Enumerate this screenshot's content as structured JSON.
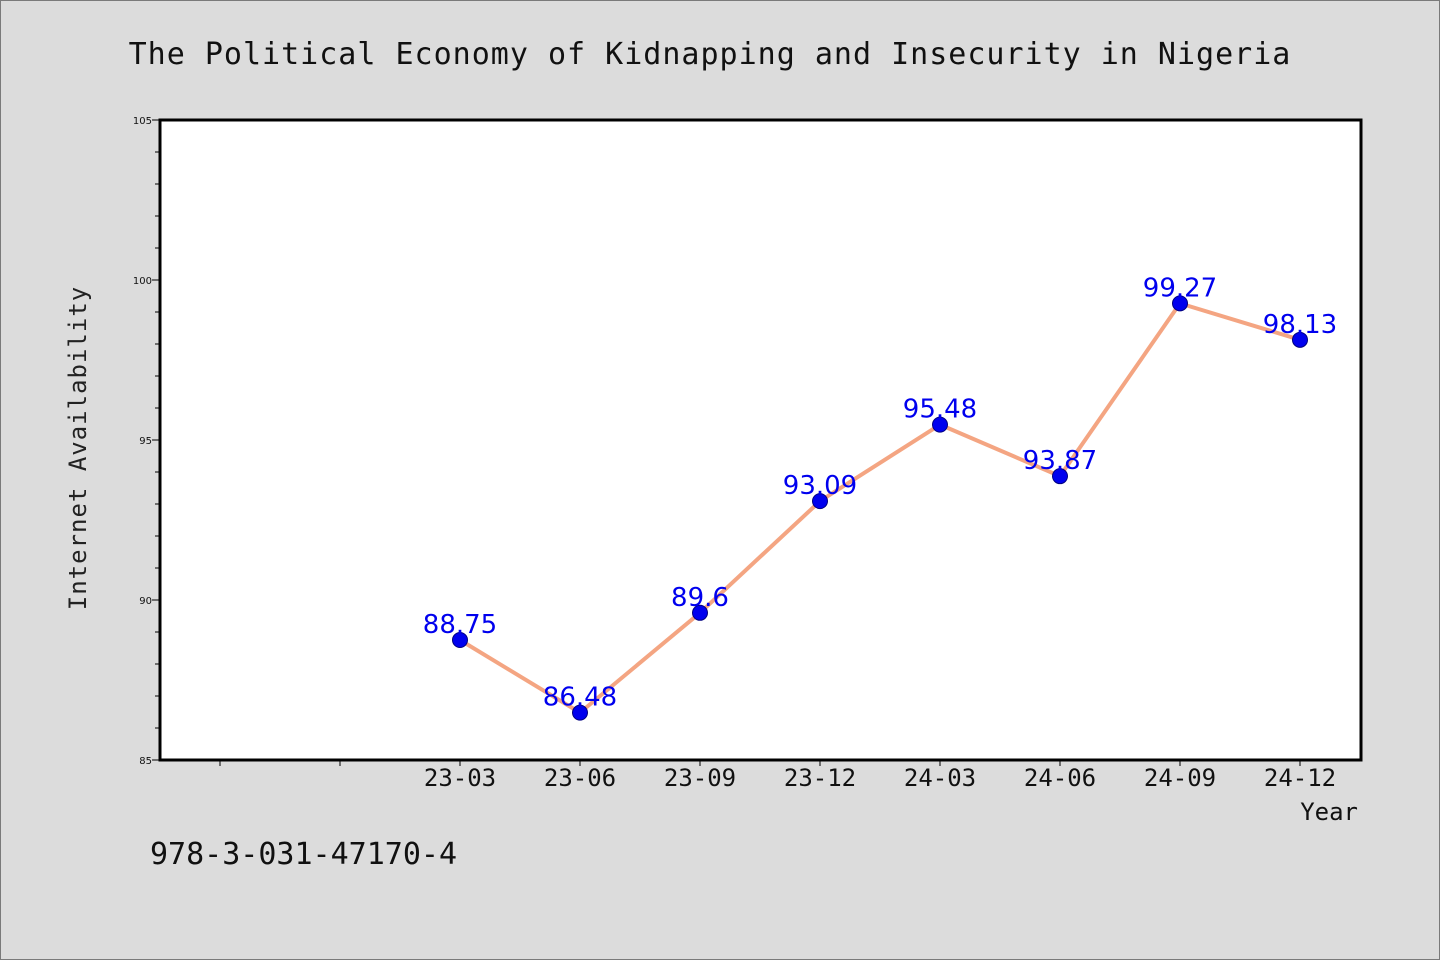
{
  "chart_data": {
    "type": "line",
    "title": "The Political Economy of Kidnapping and Insecurity in Nigeria",
    "xlabel": "Year",
    "ylabel": "Internet Availability",
    "categories": [
      "23-03",
      "23-06",
      "23-09",
      "23-12",
      "24-03",
      "24-06",
      "24-09",
      "24-12"
    ],
    "values": [
      88.75,
      86.48,
      89.6,
      93.09,
      95.48,
      93.87,
      99.27,
      98.13
    ],
    "data_labels": [
      "88.75",
      "86.48",
      "89.6",
      "93.09",
      "95.48",
      "93.87",
      "99.27",
      "98.13"
    ],
    "ylim": [
      85,
      105
    ],
    "yticks": [
      85,
      90,
      95,
      100,
      105
    ],
    "ytick_labels": [
      "85",
      "90",
      "95",
      "100",
      "105"
    ],
    "grid": false,
    "colors": {
      "line": "#f4a582",
      "marker": "#0000ee",
      "marker_edge": "#000080",
      "label": "#0000ee"
    }
  },
  "footnote": "978-3-031-47170-4"
}
